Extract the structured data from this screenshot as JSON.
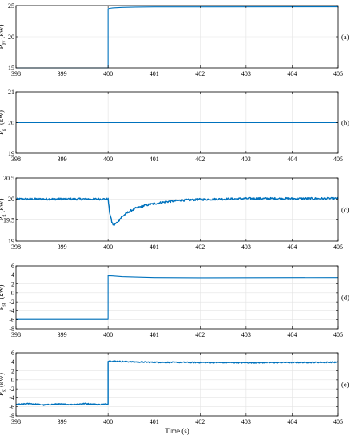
{
  "chart_data": [
    {
      "type": "line",
      "panel_label": "(a)",
      "ylabel_main": "P",
      "ylabel_sub": "pv",
      "ylabel_sup": "",
      "ylabel_unit": " (kW)",
      "xlim": [
        398,
        405
      ],
      "ylim": [
        15,
        25
      ],
      "xticks": [
        "398",
        "399",
        "400",
        "401",
        "402",
        "403",
        "404",
        "405"
      ],
      "yticks": [
        "15",
        "20",
        "25"
      ],
      "color": "#0072BD",
      "series": [
        {
          "x": [
            398,
            400.0,
            400.0,
            400.03,
            400.1,
            400.3,
            400.6,
            401,
            405
          ],
          "y": [
            15,
            15,
            24.5,
            24.55,
            24.62,
            24.7,
            24.75,
            24.78,
            24.8
          ]
        }
      ]
    },
    {
      "type": "line",
      "panel_label": "(b)",
      "ylabel_main": "P",
      "ylabel_sub": "g",
      "ylabel_sup": "*",
      "ylabel_unit": " (kW)",
      "xlim": [
        398,
        405
      ],
      "ylim": [
        19,
        21
      ],
      "xticks": [
        "398",
        "399",
        "400",
        "401",
        "402",
        "403",
        "404",
        "405"
      ],
      "yticks": [
        "19",
        "20",
        "21"
      ],
      "color": "#0072BD",
      "series": [
        {
          "x": [
            398,
            405
          ],
          "y": [
            20,
            20
          ]
        }
      ]
    },
    {
      "type": "line",
      "panel_label": "(c)",
      "ylabel_main": "P",
      "ylabel_sub": "g",
      "ylabel_sup": "",
      "ylabel_unit": " (kW)",
      "xlim": [
        398,
        405
      ],
      "ylim": [
        19,
        20.5
      ],
      "xticks": [
        "398",
        "399",
        "400",
        "401",
        "402",
        "403",
        "404",
        "405"
      ],
      "yticks": [
        "19",
        "19.5",
        "20",
        "20.5"
      ],
      "color": "#0072BD",
      "noise": 0.025,
      "series": [
        {
          "x": [
            398,
            400.0,
            400.03,
            400.08,
            400.12,
            400.2,
            400.3,
            400.45,
            400.6,
            400.8,
            401.0,
            401.3,
            401.6,
            402.0,
            402.5,
            403.0,
            405
          ],
          "y": [
            20.0,
            20.0,
            19.7,
            19.45,
            19.37,
            19.45,
            19.58,
            19.7,
            19.78,
            19.85,
            19.89,
            19.94,
            19.97,
            19.99,
            20.0,
            20.01,
            20.01
          ]
        }
      ]
    },
    {
      "type": "line",
      "panel_label": "(d)",
      "ylabel_main": "P",
      "ylabel_sub": "st",
      "ylabel_sup": "*",
      "ylabel_unit": " (kW)",
      "xlim": [
        398,
        405
      ],
      "ylim": [
        -8,
        6
      ],
      "xticks": [
        "398",
        "399",
        "400",
        "401",
        "402",
        "403",
        "404",
        "405"
      ],
      "yticks": [
        "-8",
        "-6",
        "-4",
        "-2",
        "0",
        "2",
        "4",
        "6"
      ],
      "color": "#0072BD",
      "series": [
        {
          "x": [
            398,
            400.0,
            400.0,
            400.1,
            400.3,
            400.6,
            401,
            402,
            405
          ],
          "y": [
            -5.9,
            -5.9,
            3.8,
            3.75,
            3.6,
            3.5,
            3.4,
            3.35,
            3.4
          ]
        }
      ]
    },
    {
      "type": "line",
      "panel_label": "(e)",
      "ylabel_main": "P",
      "ylabel_sub": "st",
      "ylabel_sup": "",
      "ylabel_unit": " (kW)",
      "xlabel": "Time (s)",
      "xlim": [
        398,
        405
      ],
      "ylim": [
        -8,
        6
      ],
      "xticks": [
        "398",
        "399",
        "400",
        "401",
        "402",
        "403",
        "404",
        "405"
      ],
      "yticks": [
        "-8",
        "-6",
        "-4",
        "-2",
        "0",
        "2",
        "4",
        "6"
      ],
      "color": "#0072BD",
      "noise": 0.12,
      "series": [
        {
          "x": [
            398,
            398.3,
            398.6,
            398.9,
            399.2,
            399.5,
            399.8,
            400.0,
            400.0,
            400.2,
            400.5,
            401,
            402,
            403,
            404,
            405
          ],
          "y": [
            -5.5,
            -5.3,
            -5.6,
            -5.4,
            -5.5,
            -5.3,
            -5.5,
            -5.4,
            4.2,
            4.1,
            4.0,
            3.9,
            3.85,
            3.8,
            3.85,
            3.9
          ]
        }
      ]
    }
  ]
}
